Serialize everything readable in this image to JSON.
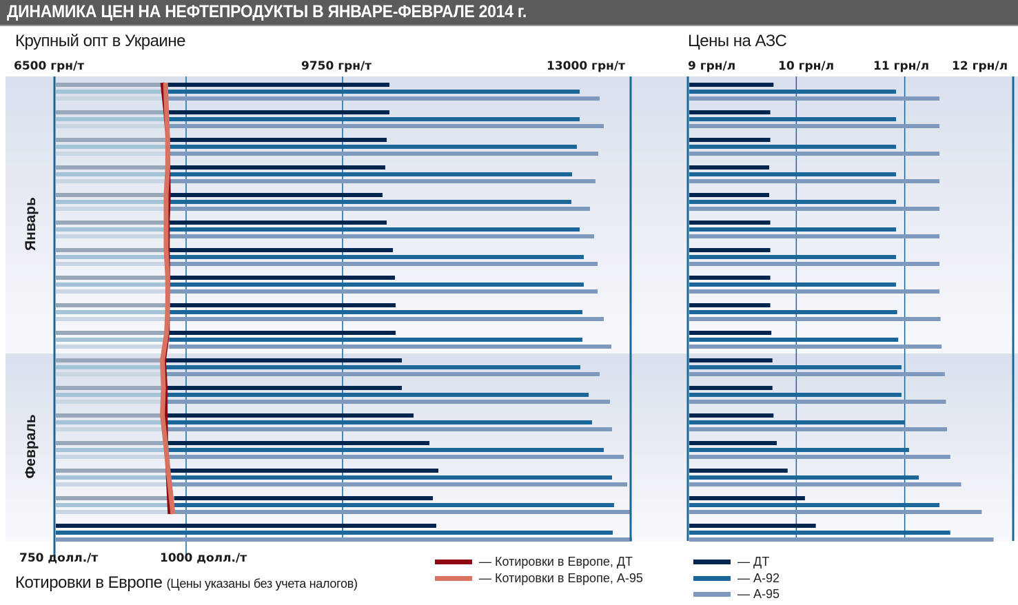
{
  "header": {
    "title": "ДИНАМИКА ЦЕН НА НЕФТЕПРОДУКТЫ В ЯНВАРЕ-ФЕВРАЛЕ 2014 г."
  },
  "left_section": {
    "title": "Крупный опт в Украине",
    "top_ticks": [
      "6500 грн/т",
      "9750 грн/т",
      "13000 грн/т"
    ],
    "bottom_ticks": [
      "750 долл./т",
      "1000 долл./т"
    ],
    "bottom_title": "Котировки в Европе",
    "bottom_note": "(Цены указаны без учета налогов)"
  },
  "right_section": {
    "title": "Цены на АЗС",
    "top_ticks": [
      "9 грн/л",
      "10 грн/л",
      "11 грн/л",
      "12 грн/л"
    ]
  },
  "months": [
    "Январь",
    "Февраль"
  ],
  "legend": {
    "europe_dt": "— Котировки в Европе, ДТ",
    "europe_a95": "— Котировки в Европе, А-95",
    "dt": "— ДТ",
    "a92": "— А-92",
    "a95": "— А-95"
  },
  "colors": {
    "dt": "#00264f",
    "a92": "#1b6799",
    "a95": "#7f99bd",
    "dt_light": "#99a8b8",
    "a92_light": "#a3c3d7",
    "a95_light": "#cbd6e4",
    "europe_dt": "#8e0a12",
    "europe_a95": "#d87261",
    "axis": "#1b6799",
    "band_top": "#d9e0ec",
    "band_bottom": "#f8f9fc"
  },
  "chart_data": [
    {
      "type": "bar",
      "orientation": "horizontal",
      "title": "Крупный опт в Украине",
      "xlabel": "грн/т",
      "xlim": [
        6500,
        13000
      ],
      "x_ticks": [
        6500,
        9750,
        13000
      ],
      "groups": 17,
      "month_groups": {
        "Январь": [
          1,
          10
        ],
        "Февраль": [
          11,
          17
        ]
      },
      "series": [
        {
          "name": "ДТ",
          "values": [
            10279,
            10279,
            10248,
            10232,
            10201,
            10248,
            10318,
            10341,
            10349,
            10349,
            10419,
            10419,
            10551,
            10730,
            10831,
            10769,
            10807
          ]
        },
        {
          "name": "А-92",
          "values": [
            12425,
            12425,
            12393,
            12339,
            12331,
            12425,
            12471,
            12471,
            12456,
            12456,
            12432,
            12526,
            12565,
            12697,
            12790,
            12813,
            12798
          ]
        },
        {
          "name": "А-95",
          "values": [
            12650,
            12697,
            12635,
            12603,
            12541,
            12588,
            12627,
            12627,
            12697,
            12782,
            12650,
            12767,
            12790,
            12922,
            12961,
            13000,
            13015
          ]
        }
      ],
      "grid": true
    },
    {
      "type": "line",
      "title": "Котировки в Европе",
      "xlabel": "долл./т",
      "xlim": [
        750,
        1000
      ],
      "x_ticks": [
        750,
        1000
      ],
      "points": 16,
      "series": [
        {
          "name": "Котировки в Европе, ДТ",
          "values": [
            955,
            961,
            965,
            966,
            967,
            965,
            965,
            966,
            965,
            965,
            958,
            961,
            961,
            962,
            965,
            969
          ]
        },
        {
          "name": "Котировки в Европе, А-95",
          "values": [
            961,
            963,
            965,
            965,
            962,
            962,
            962,
            965,
            965,
            963,
            955,
            957,
            955,
            961,
            966,
            975
          ]
        }
      ]
    },
    {
      "type": "bar",
      "orientation": "horizontal",
      "title": "Цены на АЗС",
      "xlabel": "грн/л",
      "xlim": [
        9,
        12
      ],
      "x_ticks": [
        9,
        10,
        11,
        12
      ],
      "groups": 17,
      "series": [
        {
          "name": "ДТ",
          "values": [
            9.79,
            9.76,
            9.76,
            9.75,
            9.75,
            9.76,
            9.76,
            9.76,
            9.76,
            9.77,
            9.78,
            9.78,
            9.79,
            9.82,
            9.92,
            10.08,
            10.18
          ]
        },
        {
          "name": "А-92",
          "values": [
            10.92,
            10.92,
            10.92,
            10.92,
            10.92,
            10.92,
            10.92,
            10.92,
            10.93,
            10.94,
            10.97,
            10.97,
            11.0,
            11.04,
            11.13,
            11.32,
            11.42
          ]
        },
        {
          "name": "А-95",
          "values": [
            11.32,
            11.32,
            11.32,
            11.32,
            11.32,
            11.32,
            11.32,
            11.32,
            11.33,
            11.34,
            11.37,
            11.38,
            11.39,
            11.42,
            11.52,
            11.71,
            11.82
          ]
        }
      ],
      "legend": "bottom-right",
      "grid": true
    }
  ]
}
